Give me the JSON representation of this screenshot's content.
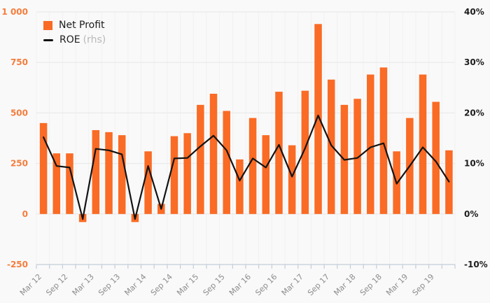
{
  "legend": {
    "items": [
      {
        "label": "Net Profit",
        "suffix": "",
        "type": "square",
        "color": "#fa6b25"
      },
      {
        "label": "ROE",
        "suffix": "(rhs)",
        "type": "line",
        "color": "#131313"
      }
    ]
  },
  "colors": {
    "background": "#f9f9f9",
    "bar": "#fa6b25",
    "line": "#131313",
    "left_axis_label": "#f57d3c",
    "right_axis_label": "#1d1d1d",
    "x_label": "#8d8d8d",
    "grid_horizontal": "#e7e7e7",
    "grid_vertical": "#f1f1f1",
    "axis": "#c4cdd9"
  },
  "chart_data": {
    "type": "bar",
    "title": "",
    "xlabel": "",
    "ylabel": "",
    "grid": true,
    "legend_position": "top-left",
    "categories": [
      "Mar 12",
      "Jun 12",
      "Sep 12",
      "Dec 12",
      "Mar 13",
      "Jun 13",
      "Sep 13",
      "Dec 13",
      "Mar 14",
      "Jun 14",
      "Sep 14",
      "Dec 14",
      "Mar 15",
      "Jun 15",
      "Sep 15",
      "Dec 15",
      "Mar 16",
      "Jun 16",
      "Sep 16",
      "Dec 16",
      "Mar 17",
      "Jun 17",
      "Sep 17",
      "Dec 17",
      "Mar 18",
      "Jun 18",
      "Sep 18",
      "Dec 18",
      "Mar 19",
      "Jun 19",
      "Sep 19",
      "Dec 19"
    ],
    "x_tick_labels_visible": [
      "Mar 12",
      "Sep 12",
      "Mar 13",
      "Sep 13",
      "Mar 14",
      "Sep 14",
      "Mar 15",
      "Sep 15",
      "Mar 16",
      "Sep 16",
      "Mar 17",
      "Sep 17",
      "Mar 18",
      "Sep 18",
      "Mar 19",
      "Sep 19"
    ],
    "series": [
      {
        "name": "Net Profit",
        "type": "bar",
        "axis": "left",
        "values": [
          450,
          300,
          300,
          -40,
          415,
          405,
          390,
          -40,
          310,
          50,
          385,
          400,
          540,
          595,
          510,
          270,
          475,
          390,
          605,
          340,
          610,
          940,
          665,
          540,
          570,
          690,
          725,
          310,
          475,
          690,
          555,
          315
        ]
      },
      {
        "name": "ROE (rhs)",
        "type": "line",
        "axis": "right",
        "values": [
          15.2,
          9.5,
          9.2,
          -1.0,
          12.9,
          12.6,
          11.8,
          -1.0,
          9.5,
          1.0,
          11.0,
          11.1,
          13.4,
          15.5,
          12.6,
          6.6,
          11.0,
          9.2,
          13.7,
          7.4,
          13.0,
          19.5,
          13.6,
          10.7,
          11.1,
          13.2,
          14.0,
          6.0,
          9.5,
          13.2,
          10.4,
          6.4
        ]
      }
    ],
    "left_axis": {
      "min": -250,
      "max": 1000,
      "ticks": [
        {
          "label": "1 000",
          "value": 1000
        },
        {
          "label": "750",
          "value": 750
        },
        {
          "label": "500",
          "value": 500
        },
        {
          "label": "250",
          "value": 250
        },
        {
          "label": "0",
          "value": 0
        },
        {
          "label": "-250",
          "value": -250
        }
      ]
    },
    "right_axis": {
      "min": -10,
      "max": 40,
      "ticks": [
        {
          "label": "40%",
          "value": 40
        },
        {
          "label": "30%",
          "value": 30
        },
        {
          "label": "20%",
          "value": 20
        },
        {
          "label": "10%",
          "value": 10
        },
        {
          "label": "0%",
          "value": 0
        },
        {
          "label": "-10%",
          "value": -10
        }
      ]
    }
  }
}
